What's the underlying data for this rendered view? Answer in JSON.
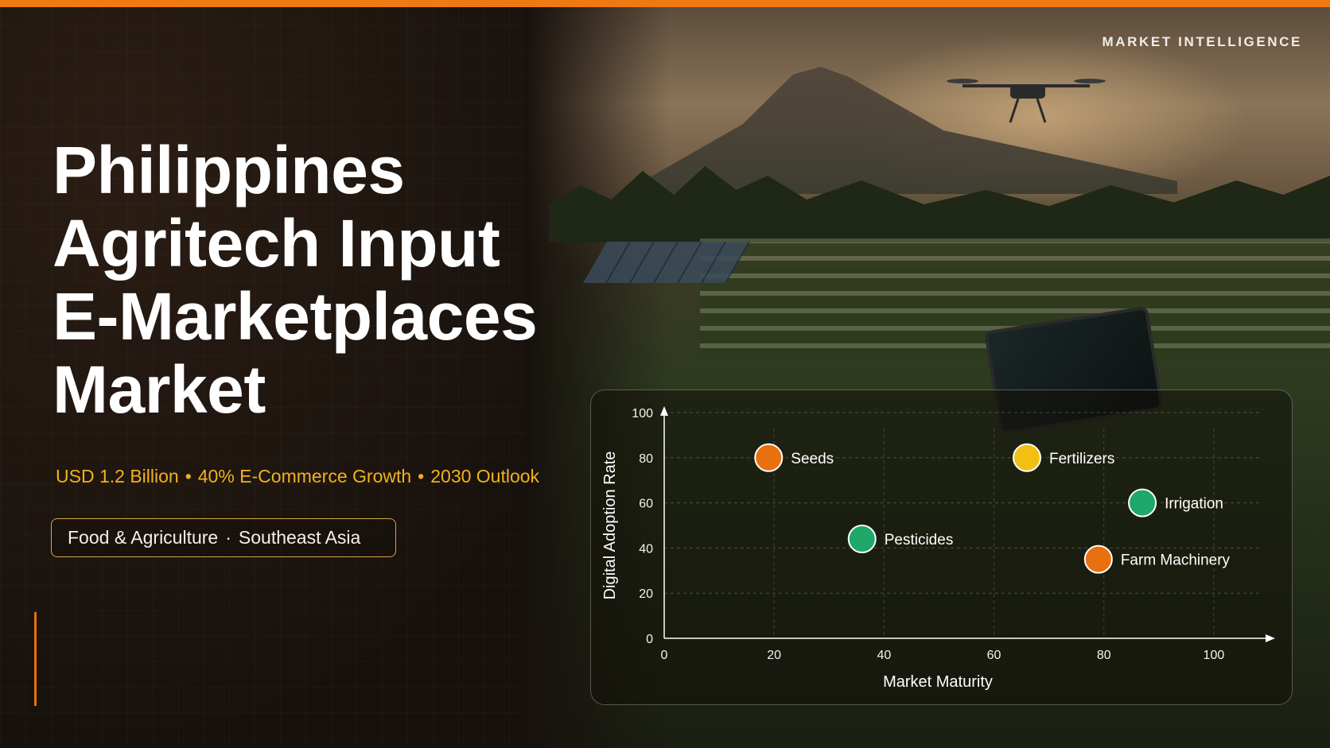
{
  "header": {
    "eyebrow": "MARKET INTELLIGENCE"
  },
  "hero": {
    "title_lines": [
      "Philippines",
      "Agritech Input",
      "E-Marketplaces",
      "Market"
    ],
    "stats": [
      "USD 1.2 Billion",
      "40% E-Commerce Growth",
      "2030 Outlook"
    ],
    "stats_separator": "•",
    "tags": [
      "Food & Agriculture",
      "Southeast Asia"
    ],
    "tags_separator": "·"
  },
  "colors": {
    "accent": "#ef7a12",
    "stat_text": "#f2b21d",
    "tag_border": "#d9a646"
  },
  "chart_data": {
    "type": "scatter",
    "xlabel": "Market Maturity",
    "ylabel": "Digital Adoption Rate",
    "xlim": [
      0,
      110
    ],
    "ylim": [
      0,
      100
    ],
    "xticks": [
      0,
      20,
      40,
      60,
      80,
      100
    ],
    "yticks": [
      0,
      20,
      40,
      60,
      80,
      100
    ],
    "grid": true,
    "points": [
      {
        "label": "Seeds",
        "x": 19,
        "y": 80,
        "color": "#e8700f"
      },
      {
        "label": "Fertilizers",
        "x": 66,
        "y": 80,
        "color": "#f2c012"
      },
      {
        "label": "Irrigation",
        "x": 87,
        "y": 60,
        "color": "#1fa86a"
      },
      {
        "label": "Pesticides",
        "x": 36,
        "y": 44,
        "color": "#1fa86a"
      },
      {
        "label": "Farm Machinery",
        "x": 79,
        "y": 35,
        "color": "#e8700f"
      }
    ]
  }
}
